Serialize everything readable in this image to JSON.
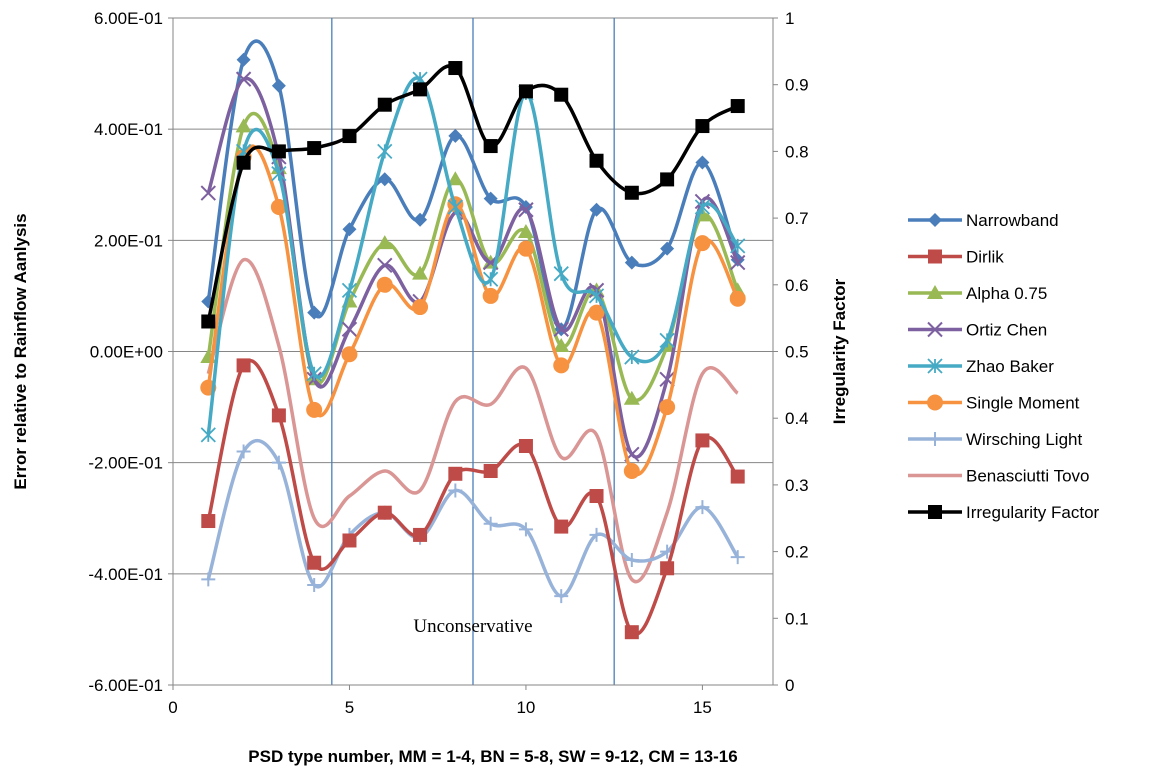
{
  "chart_data": {
    "type": "line",
    "title": "",
    "xlabel": "PSD type number, MM = 1-4, BN = 5-8, SW = 9-12, CM = 13-16",
    "ylabel": "Error relative to Rainflow Aanlysis",
    "y2label": "Irregularity Factor",
    "xlim": [
      0,
      17
    ],
    "ylim": [
      -0.6,
      0.6
    ],
    "y2lim": [
      0,
      1
    ],
    "x_ticks": [
      0,
      5,
      10,
      15
    ],
    "x_tick_labels": [
      "0",
      "5",
      "10",
      "15"
    ],
    "y_ticks": [
      -0.6,
      -0.4,
      -0.2,
      0.0,
      0.2,
      0.4,
      0.6
    ],
    "y_tick_labels": [
      "-6.00E-01",
      "-4.00E-01",
      "-2.00E-01",
      "0.00E+00",
      "2.00E-01",
      "4.00E-01",
      "6.00E-01"
    ],
    "y2_ticks": [
      0,
      0.1,
      0.2,
      0.3,
      0.4,
      0.5,
      0.6,
      0.7,
      0.8,
      0.9,
      1
    ],
    "y2_tick_labels": [
      "0",
      "0.1",
      "0.2",
      "0.3",
      "0.4",
      "0.5",
      "0.6",
      "0.7",
      "0.8",
      "0.9",
      "1"
    ],
    "grid": "horizontal",
    "legend_position": "right",
    "vertical_lines": [
      4.5,
      8.5,
      12.5
    ],
    "annotations": [
      {
        "text": "Unconservative",
        "x": 8.5,
        "y": -0.505
      }
    ],
    "x": [
      1,
      2,
      3,
      4,
      5,
      6,
      7,
      8,
      9,
      10,
      11,
      12,
      13,
      14,
      15,
      16
    ],
    "series": [
      {
        "name": "Narrowband",
        "axis": "left",
        "color": "#4a7ebb",
        "marker": "diamond",
        "values": [
          0.09,
          0.525,
          0.478,
          0.07,
          0.22,
          0.31,
          0.237,
          0.388,
          0.275,
          0.26,
          0.04,
          0.255,
          0.16,
          0.185,
          0.34,
          0.165
        ]
      },
      {
        "name": "Dirlik",
        "axis": "left",
        "color": "#be4b48",
        "marker": "square",
        "values": [
          -0.305,
          -0.025,
          -0.115,
          -0.38,
          -0.34,
          -0.29,
          -0.33,
          -0.22,
          -0.215,
          -0.17,
          -0.315,
          -0.26,
          -0.505,
          -0.39,
          -0.16,
          -0.225
        ]
      },
      {
        "name": "Alpha 0.75",
        "axis": "left",
        "color": "#98b954",
        "marker": "triangle",
        "values": [
          -0.01,
          0.405,
          0.33,
          -0.05,
          0.09,
          0.195,
          0.14,
          0.31,
          0.16,
          0.215,
          0.01,
          0.11,
          -0.085,
          0.01,
          0.245,
          0.11
        ]
      },
      {
        "name": "Ortiz Chen",
        "axis": "left",
        "color": "#7d60a0",
        "marker": "x",
        "values": [
          0.285,
          0.49,
          0.35,
          -0.05,
          0.04,
          0.155,
          0.09,
          0.25,
          0.16,
          0.255,
          0.04,
          0.11,
          -0.185,
          -0.05,
          0.27,
          0.16
        ]
      },
      {
        "name": "Zhao Baker",
        "axis": "left",
        "color": "#46aac5",
        "marker": "asterisk",
        "values": [
          -0.15,
          0.36,
          0.32,
          -0.04,
          0.11,
          0.36,
          0.49,
          0.26,
          0.13,
          0.465,
          0.14,
          0.1,
          -0.01,
          0.02,
          0.26,
          0.19
        ]
      },
      {
        "name": "Single Moment",
        "axis": "left",
        "color": "#f69240",
        "marker": "circle",
        "values": [
          -0.065,
          0.35,
          0.26,
          -0.105,
          -0.005,
          0.12,
          0.08,
          0.265,
          0.1,
          0.185,
          -0.025,
          0.07,
          -0.215,
          -0.1,
          0.195,
          0.095
        ]
      },
      {
        "name": "Wirsching Light",
        "axis": "left",
        "color": "#98b3d9",
        "marker": "plus",
        "values": [
          -0.41,
          -0.18,
          -0.2,
          -0.42,
          -0.33,
          -0.29,
          -0.335,
          -0.25,
          -0.31,
          -0.32,
          -0.44,
          -0.33,
          -0.375,
          -0.36,
          -0.28,
          -0.37
        ]
      },
      {
        "name": "Benasciutti Tovo",
        "axis": "left",
        "color": "#d99694",
        "marker": "none",
        "values": [
          -0.04,
          0.165,
          0.01,
          -0.3,
          -0.26,
          -0.215,
          -0.25,
          -0.09,
          -0.095,
          -0.03,
          -0.19,
          -0.15,
          -0.41,
          -0.29,
          -0.04,
          -0.075
        ]
      },
      {
        "name": "Irregularity Factor",
        "axis": "right",
        "color": "#000000",
        "marker": "square",
        "values": [
          0.545,
          0.783,
          0.8,
          0.805,
          0.823,
          0.87,
          0.893,
          0.925,
          0.808,
          0.89,
          0.885,
          0.786,
          0.738,
          0.758,
          0.838,
          0.868
        ]
      }
    ]
  }
}
